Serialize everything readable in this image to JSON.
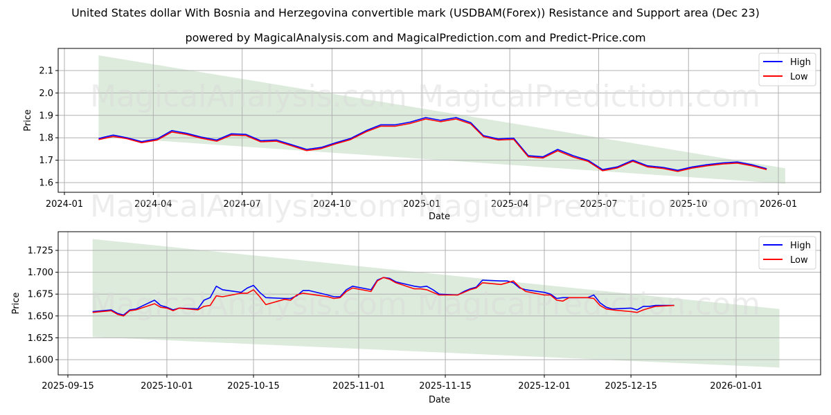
{
  "header": {
    "title": "United States dollar With Bosnia and Herzegovina convertible mark (USDBAM(Forex)) Resistance and Support area (Dec 23)",
    "subtitle": "powered by MagicalAnalysis.com and MagicalPrediction.com and Predict-Price.com"
  },
  "watermarks": [
    "MagicalAnalysis.com",
    "MagicalPrediction.com"
  ],
  "colors": {
    "high": "#0000ff",
    "low": "#ff0000",
    "band": "#dcebdc",
    "grid": "#b0b0b0"
  },
  "chart_data": [
    {
      "type": "line",
      "title": "",
      "xlabel": "Date",
      "ylabel": "Price",
      "ylim": [
        1.56,
        2.19
      ],
      "grid": true,
      "legend_position": "upper right",
      "legend": [
        "High",
        "Low"
      ],
      "x_ticks": [
        "2024-01",
        "2024-04",
        "2024-07",
        "2024-10",
        "2025-01",
        "2025-04",
        "2025-07",
        "2025-10",
        "2026-01"
      ],
      "y_ticks": [
        "1.6",
        "1.7",
        "1.8",
        "1.9",
        "2.0",
        "2.1"
      ],
      "band": {
        "x_start": "2024-02-05",
        "x_end": "2026-01-08",
        "upper": [
          2.168,
          1.664
        ],
        "lower": [
          1.805,
          1.595
        ]
      },
      "x": [
        "2024-02-05",
        "2024-02-20",
        "2024-03-05",
        "2024-03-20",
        "2024-04-05",
        "2024-04-20",
        "2024-05-05",
        "2024-05-20",
        "2024-06-05",
        "2024-06-20",
        "2024-07-05",
        "2024-07-20",
        "2024-08-05",
        "2024-08-20",
        "2024-09-05",
        "2024-09-20",
        "2024-10-05",
        "2024-10-20",
        "2024-11-05",
        "2024-11-20",
        "2024-12-05",
        "2024-12-20",
        "2025-01-05",
        "2025-01-20",
        "2025-02-05",
        "2025-02-20",
        "2025-03-05",
        "2025-03-20",
        "2025-04-05",
        "2025-04-20",
        "2025-05-05",
        "2025-05-20",
        "2025-06-05",
        "2025-06-20",
        "2025-07-05",
        "2025-07-20",
        "2025-08-05",
        "2025-08-20",
        "2025-09-05",
        "2025-09-20",
        "2025-10-05",
        "2025-10-20",
        "2025-11-05",
        "2025-11-20",
        "2025-12-05",
        "2025-12-20"
      ],
      "series": [
        {
          "name": "High",
          "values": [
            1.797,
            1.812,
            1.8,
            1.783,
            1.795,
            1.832,
            1.82,
            1.803,
            1.79,
            1.818,
            1.815,
            1.787,
            1.79,
            1.77,
            1.748,
            1.757,
            1.778,
            1.797,
            1.832,
            1.858,
            1.858,
            1.87,
            1.89,
            1.878,
            1.89,
            1.868,
            1.81,
            1.795,
            1.798,
            1.72,
            1.715,
            1.748,
            1.72,
            1.7,
            1.658,
            1.67,
            1.7,
            1.675,
            1.668,
            1.655,
            1.67,
            1.68,
            1.688,
            1.692,
            1.68,
            1.662
          ]
        },
        {
          "name": "Low",
          "values": [
            1.792,
            1.806,
            1.796,
            1.778,
            1.79,
            1.826,
            1.815,
            1.798,
            1.785,
            1.812,
            1.81,
            1.782,
            1.785,
            1.765,
            1.743,
            1.752,
            1.773,
            1.792,
            1.827,
            1.852,
            1.852,
            1.864,
            1.884,
            1.872,
            1.884,
            1.862,
            1.805,
            1.79,
            1.793,
            1.715,
            1.71,
            1.742,
            1.714,
            1.695,
            1.653,
            1.665,
            1.695,
            1.67,
            1.663,
            1.65,
            1.665,
            1.675,
            1.683,
            1.687,
            1.675,
            1.658
          ]
        }
      ]
    },
    {
      "type": "line",
      "title": "",
      "xlabel": "Date",
      "ylabel": "Price",
      "ylim": [
        1.583,
        1.747
      ],
      "grid": true,
      "legend_position": "upper right",
      "legend": [
        "High",
        "Low"
      ],
      "x_ticks": [
        "2025-09-15",
        "2025-10-01",
        "2025-10-15",
        "2025-11-01",
        "2025-11-15",
        "2025-12-01",
        "2025-12-15",
        "2026-01-01"
      ],
      "y_ticks": [
        "1.600",
        "1.625",
        "1.650",
        "1.675",
        "1.700",
        "1.725"
      ],
      "band": {
        "x_start": "2025-09-19",
        "x_end": "2026-01-08",
        "upper": [
          1.738,
          1.658
        ],
        "lower": [
          1.626,
          1.591
        ]
      },
      "x": [
        "2025-09-19",
        "2025-09-22",
        "2025-09-23",
        "2025-09-24",
        "2025-09-25",
        "2025-09-26",
        "2025-09-29",
        "2025-09-30",
        "2025-10-01",
        "2025-10-02",
        "2025-10-03",
        "2025-10-06",
        "2025-10-07",
        "2025-10-08",
        "2025-10-09",
        "2025-10-10",
        "2025-10-13",
        "2025-10-14",
        "2025-10-15",
        "2025-10-16",
        "2025-10-17",
        "2025-10-20",
        "2025-10-21",
        "2025-10-22",
        "2025-10-23",
        "2025-10-24",
        "2025-10-27",
        "2025-10-28",
        "2025-10-29",
        "2025-10-30",
        "2025-10-31",
        "2025-11-03",
        "2025-11-04",
        "2025-11-05",
        "2025-11-06",
        "2025-11-07",
        "2025-11-10",
        "2025-11-11",
        "2025-11-12",
        "2025-11-13",
        "2025-11-14",
        "2025-11-17",
        "2025-11-18",
        "2025-11-19",
        "2025-11-20",
        "2025-11-21",
        "2025-11-24",
        "2025-11-25",
        "2025-11-26",
        "2025-11-27",
        "2025-11-28",
        "2025-12-01",
        "2025-12-02",
        "2025-12-03",
        "2025-12-04",
        "2025-12-05",
        "2025-12-08",
        "2025-12-09",
        "2025-12-10",
        "2025-12-11",
        "2025-12-12",
        "2025-12-15",
        "2025-12-16",
        "2025-12-17",
        "2025-12-18",
        "2025-12-19",
        "2025-12-22"
      ],
      "series": [
        {
          "name": "High",
          "values": [
            1.655,
            1.657,
            1.653,
            1.651,
            1.657,
            1.658,
            1.668,
            1.662,
            1.66,
            1.657,
            1.659,
            1.658,
            1.668,
            1.671,
            1.684,
            1.68,
            1.677,
            1.682,
            1.685,
            1.677,
            1.671,
            1.67,
            1.67,
            1.673,
            1.679,
            1.679,
            1.674,
            1.672,
            1.672,
            1.68,
            1.684,
            1.68,
            1.691,
            1.694,
            1.693,
            1.689,
            1.684,
            1.683,
            1.684,
            1.68,
            1.675,
            1.674,
            1.678,
            1.681,
            1.683,
            1.691,
            1.69,
            1.69,
            1.688,
            1.682,
            1.68,
            1.677,
            1.675,
            1.67,
            1.671,
            1.671,
            1.671,
            1.674,
            1.665,
            1.66,
            1.658,
            1.659,
            1.657,
            1.661,
            1.661,
            1.662,
            1.662
          ]
        },
        {
          "name": "Low",
          "values": [
            1.654,
            1.656,
            1.652,
            1.65,
            1.656,
            1.657,
            1.664,
            1.66,
            1.659,
            1.656,
            1.659,
            1.657,
            1.661,
            1.662,
            1.673,
            1.672,
            1.676,
            1.676,
            1.68,
            1.672,
            1.663,
            1.669,
            1.668,
            1.674,
            1.676,
            1.675,
            1.672,
            1.67,
            1.671,
            1.678,
            1.682,
            1.678,
            1.69,
            1.694,
            1.692,
            1.688,
            1.681,
            1.681,
            1.68,
            1.677,
            1.674,
            1.674,
            1.677,
            1.68,
            1.682,
            1.688,
            1.686,
            1.688,
            1.69,
            1.683,
            1.678,
            1.674,
            1.674,
            1.668,
            1.667,
            1.671,
            1.671,
            1.67,
            1.662,
            1.658,
            1.657,
            1.655,
            1.654,
            1.657,
            1.659,
            1.661,
            1.662
          ]
        }
      ]
    }
  ]
}
